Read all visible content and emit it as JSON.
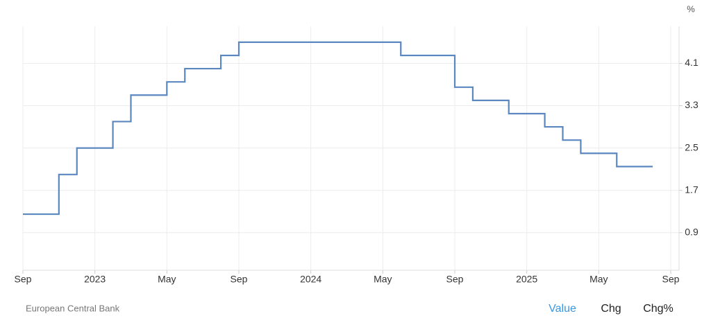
{
  "chart_data": {
    "type": "line",
    "step": "after",
    "unit": "%",
    "source": "European Central Bank",
    "buttons": [
      "Value",
      "Chg",
      "Chg%"
    ],
    "color": "#5b87c0",
    "x": [
      "2022-09",
      "2022-11",
      "2022-12",
      "2023-02",
      "2023-03",
      "2023-05",
      "2023-06",
      "2023-08",
      "2023-09",
      "2024-06",
      "2024-09",
      "2024-10",
      "2024-12",
      "2025-02",
      "2025-03",
      "2025-04",
      "2025-06",
      "2025-08"
    ],
    "values": [
      1.25,
      2.0,
      2.5,
      3.0,
      3.5,
      3.75,
      4.0,
      4.25,
      4.5,
      4.25,
      3.65,
      3.4,
      3.15,
      2.9,
      2.65,
      2.4,
      2.15,
      2.15
    ],
    "xlim": [
      "2022-09",
      "2025-09"
    ],
    "xticks": [
      {
        "value": "2022-09",
        "label": "Sep"
      },
      {
        "value": "2023-01",
        "label": "2023"
      },
      {
        "value": "2023-05",
        "label": "May"
      },
      {
        "value": "2023-09",
        "label": "Sep"
      },
      {
        "value": "2024-01",
        "label": "2024"
      },
      {
        "value": "2024-05",
        "label": "May"
      },
      {
        "value": "2024-09",
        "label": "Sep"
      },
      {
        "value": "2025-01",
        "label": "2025"
      },
      {
        "value": "2025-05",
        "label": "May"
      },
      {
        "value": "2025-09",
        "label": "Sep"
      }
    ],
    "ylim": [
      0.19,
      4.8
    ],
    "yticks": [
      0.9,
      1.7,
      2.5,
      3.3,
      4.1
    ],
    "grid": true
  }
}
